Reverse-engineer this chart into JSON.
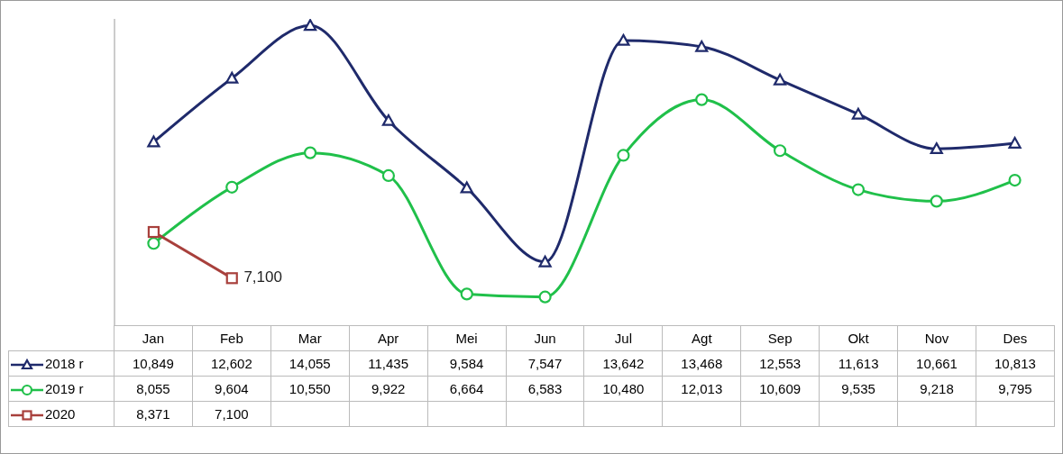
{
  "chart_data": {
    "type": "line",
    "categories": [
      "Jan",
      "Feb",
      "Mar",
      "Apr",
      "Mei",
      "Jun",
      "Jul",
      "Agt",
      "Sep",
      "Okt",
      "Nov",
      "Des"
    ],
    "series": [
      {
        "name": "2018 r",
        "color": "#1f2a6b",
        "marker": "triangle",
        "values": [
          10849,
          12602,
          14055,
          11435,
          9584,
          7547,
          13642,
          13468,
          12553,
          11613,
          10661,
          10813
        ],
        "value_labels": [
          "10,849",
          "12,602",
          "14,055",
          "11,435",
          "9,584",
          "7,547",
          "13,642",
          "13,468",
          "12,553",
          "11,613",
          "10,661",
          "10,813"
        ]
      },
      {
        "name": "2019 r",
        "color": "#20c04a",
        "marker": "circle",
        "values": [
          8055,
          9604,
          10550,
          9922,
          6664,
          6583,
          10480,
          12013,
          10609,
          9535,
          9218,
          9795
        ],
        "value_labels": [
          "8,055",
          "9,604",
          "10,550",
          "9,922",
          "6,664",
          "6,583",
          "10,480",
          "12,013",
          "10,609",
          "9,535",
          "9,218",
          "9,795"
        ]
      },
      {
        "name": "2020",
        "color": "#a8403c",
        "marker": "square",
        "values": [
          8371,
          7100,
          null,
          null,
          null,
          null,
          null,
          null,
          null,
          null,
          null,
          null
        ],
        "value_labels": [
          "8,371",
          "7,100",
          null,
          null,
          null,
          null,
          null,
          null,
          null,
          null,
          null,
          null
        ]
      }
    ],
    "annotations": [
      {
        "text": "7,100",
        "x": "Feb",
        "y": 7100
      }
    ],
    "legend": "bottom"
  }
}
